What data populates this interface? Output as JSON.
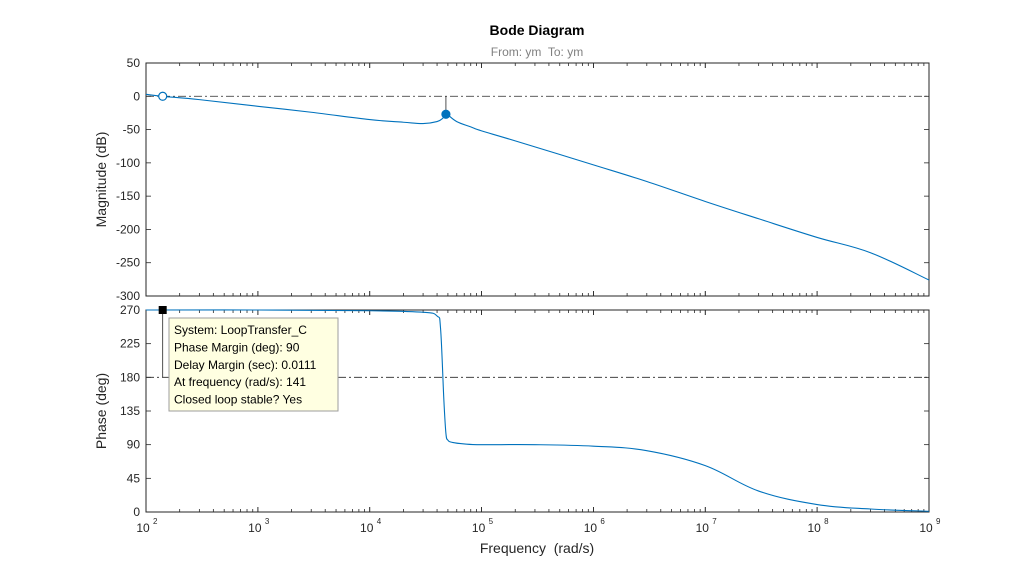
{
  "chart_data": {
    "type": "line",
    "title": "Bode Diagram",
    "subtitle": "From: ym  To: ym",
    "xlabel": "Frequency  (rad/s)",
    "xscale": "log",
    "xlim": [
      100,
      1000000000
    ],
    "xtick_labels": [
      {
        "base": "10",
        "exp": "2",
        "value": 100
      },
      {
        "base": "10",
        "exp": "3",
        "value": 1000
      },
      {
        "base": "10",
        "exp": "4",
        "value": 10000
      },
      {
        "base": "10",
        "exp": "5",
        "value": 100000
      },
      {
        "base": "10",
        "exp": "6",
        "value": 1000000
      },
      {
        "base": "10",
        "exp": "7",
        "value": 10000000
      },
      {
        "base": "10",
        "exp": "8",
        "value": 100000000
      },
      {
        "base": "10",
        "exp": "9",
        "value": 1000000000
      }
    ],
    "line_color": "#0072bd",
    "panels": [
      {
        "name": "magnitude",
        "ylabel": "Magnitude (dB)",
        "ylim": [
          -300,
          50
        ],
        "yticks": [
          "50",
          "0",
          "-50",
          "-100",
          "-150",
          "-200",
          "-250",
          "-300"
        ],
        "reference_line": 0,
        "x": [
          100,
          141,
          300,
          1000,
          3000,
          10000,
          20000,
          30000,
          40000,
          45000,
          48000,
          50000,
          60000,
          80000,
          100000,
          200000,
          1000000,
          3000000,
          10000000,
          30000000,
          100000000,
          300000000,
          1000000000
        ],
        "y": [
          3,
          0,
          -5,
          -15,
          -24,
          -35,
          -39,
          -41,
          -38,
          -33,
          -27,
          -28,
          -38,
          -46,
          -52,
          -67,
          -103,
          -128,
          -158,
          -184,
          -212,
          -235,
          -276
        ],
        "markers": [
          {
            "name": "gain-margin-marker",
            "x": 141,
            "y": 0,
            "filled": false
          },
          {
            "name": "peak-marker",
            "x": 48000,
            "y": -27,
            "filled": true
          }
        ]
      },
      {
        "name": "phase",
        "ylabel": "Phase (deg)",
        "ylim": [
          0,
          270
        ],
        "yticks": [
          "270",
          "225",
          "180",
          "135",
          "90",
          "45",
          "0"
        ],
        "reference_line": 180,
        "x": [
          100,
          1000,
          10000,
          30000,
          40000,
          43000,
          46000,
          48000,
          50000,
          55000,
          70000,
          100000,
          300000,
          1000000,
          3000000,
          10000000,
          30000000,
          100000000,
          300000000,
          1000000000
        ],
        "y": [
          270,
          270,
          269,
          267,
          262,
          245,
          150,
          105,
          96,
          93,
          91,
          90,
          90,
          88,
          82,
          62,
          28,
          10,
          4,
          1
        ],
        "markers": [
          {
            "name": "phase-margin-marker",
            "x": 141,
            "y": 270,
            "filled": true
          }
        ]
      }
    ]
  },
  "datatip": {
    "lines": [
      "System: LoopTransfer_C",
      "Phase Margin (deg): 90",
      "Delay Margin (sec): 0.0111",
      "At frequency (rad/s): 141",
      "Closed loop stable? Yes"
    ],
    "background": "#ffffe1"
  }
}
